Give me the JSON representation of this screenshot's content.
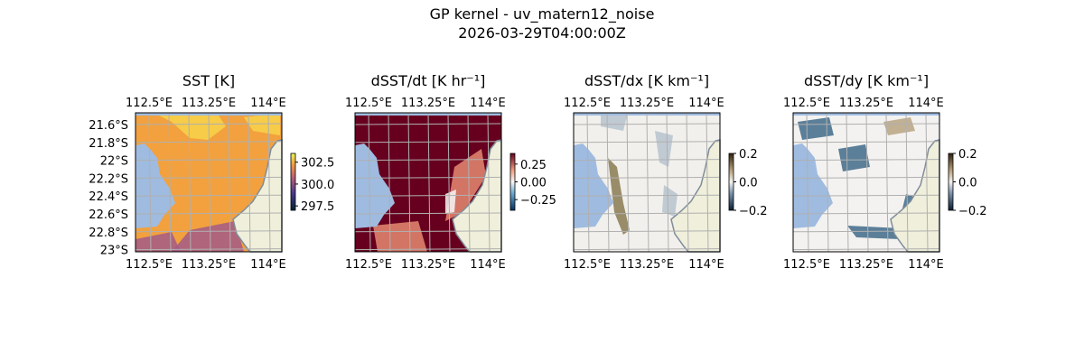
{
  "figure": {
    "title": "GP kernel - uv_matern12_noise",
    "subtitle": "2026-03-29T04:00:00Z"
  },
  "chart_data": [
    {
      "type": "heatmap",
      "title": "SST [K]",
      "lon_ticks": [
        "112.5°E",
        "113.25°E",
        "114°E"
      ],
      "lat_ticks": [
        "21.6°S",
        "21.8°S",
        "22°S",
        "22.2°S",
        "22.4°S",
        "22.6°S",
        "22.8°S",
        "23°S"
      ],
      "colorbar": {
        "ticks": [
          "302.5",
          "300.0",
          "297.5"
        ],
        "range": [
          297,
          303.5
        ]
      },
      "colors": {
        "base": "#f2a13e",
        "hi": "#f8d44a",
        "lo": "#a35a86"
      }
    },
    {
      "type": "heatmap",
      "title": "dSST/dt [K hr⁻¹]",
      "lon_ticks": [
        "112.5°E",
        "113.25°E",
        "114°E"
      ],
      "colorbar": {
        "ticks": [
          "0.25",
          "0.00",
          "−0.25"
        ],
        "range": [
          -0.4,
          0.4
        ]
      },
      "colors": {
        "base": "#67001f",
        "hi": "#e58a72",
        "lo": "#f7f7f7"
      }
    },
    {
      "type": "heatmap",
      "title": "dSST/dx [K km⁻¹]",
      "lon_ticks": [
        "112.5°E",
        "113.25°E",
        "114°E"
      ],
      "colorbar": {
        "ticks": [
          "0.2",
          "0.0",
          "−0.2"
        ],
        "range": [
          -0.2,
          0.2
        ]
      },
      "colors": {
        "base": "#f2f0ec",
        "hi": "#8a7a52",
        "lo": "#b7c3cf"
      }
    },
    {
      "type": "heatmap",
      "title": "dSST/dy [K km⁻¹]",
      "lon_ticks": [
        "112.5°E",
        "113.25°E",
        "114°E"
      ],
      "colorbar": {
        "ticks": [
          "0.2",
          "0.0",
          "−0.2"
        ],
        "range": [
          -0.2,
          0.2
        ]
      },
      "colors": {
        "base": "#f3f2f0",
        "hi": "#b9a583",
        "lo": "#3f6b8a"
      }
    }
  ],
  "colors": {
    "water": "#9fbbe0",
    "land": "#efefdb",
    "coast": "#7f8c99",
    "grid": "#b0b0b0"
  }
}
